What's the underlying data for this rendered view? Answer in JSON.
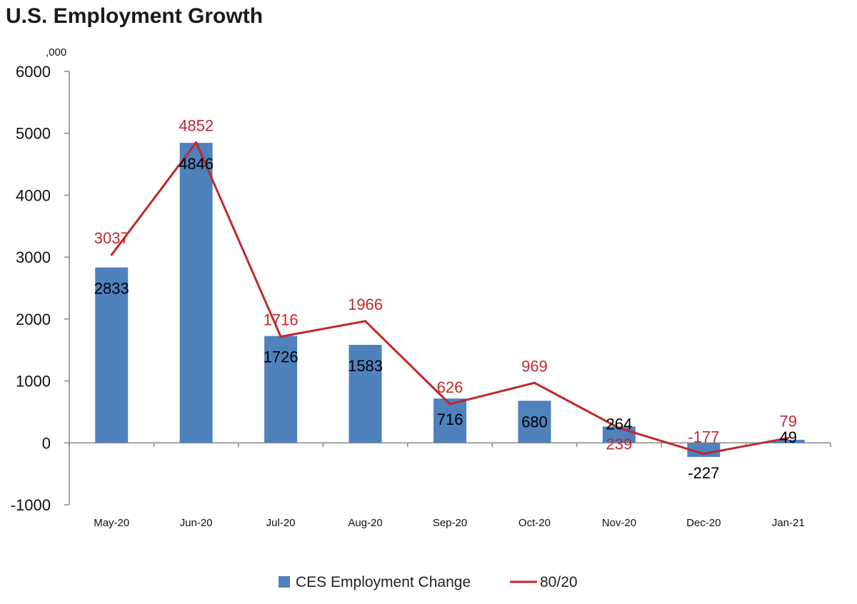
{
  "chart_data": {
    "type": "bar",
    "title": "U.S. Employment Growth",
    "unit_label": ",000",
    "categories": [
      "May-20",
      "Jun-20",
      "Jul-20",
      "Aug-20",
      "Sep-20",
      "Oct-20",
      "Nov-20",
      "Dec-20",
      "Jan-21"
    ],
    "ylim": [
      -1000,
      6000
    ],
    "yticks": [
      "6000",
      "5000",
      "4000",
      "3000",
      "2000",
      "1000",
      "0",
      "-1000"
    ],
    "ytick_values": [
      6000,
      5000,
      4000,
      3000,
      2000,
      1000,
      0,
      -1000
    ],
    "grid": false,
    "legend_position": "bottom",
    "series": [
      {
        "name": "CES Employment Change",
        "kind": "bar",
        "color": "#4f81bd",
        "values": [
          2833,
          4846,
          1726,
          1583,
          716,
          680,
          264,
          -227,
          49
        ],
        "labels": [
          "2833",
          "4846",
          "1726",
          "1583",
          "716",
          "680",
          "264",
          "-227",
          "49"
        ]
      },
      {
        "name": "80/20",
        "kind": "line",
        "color": "#c0282d",
        "values": [
          3037,
          4852,
          1716,
          1966,
          626,
          969,
          239,
          -177,
          79
        ],
        "labels": [
          "3037",
          "4852",
          "1716",
          "1966",
          "626",
          "969",
          "239",
          "-177",
          "79"
        ]
      }
    ]
  }
}
